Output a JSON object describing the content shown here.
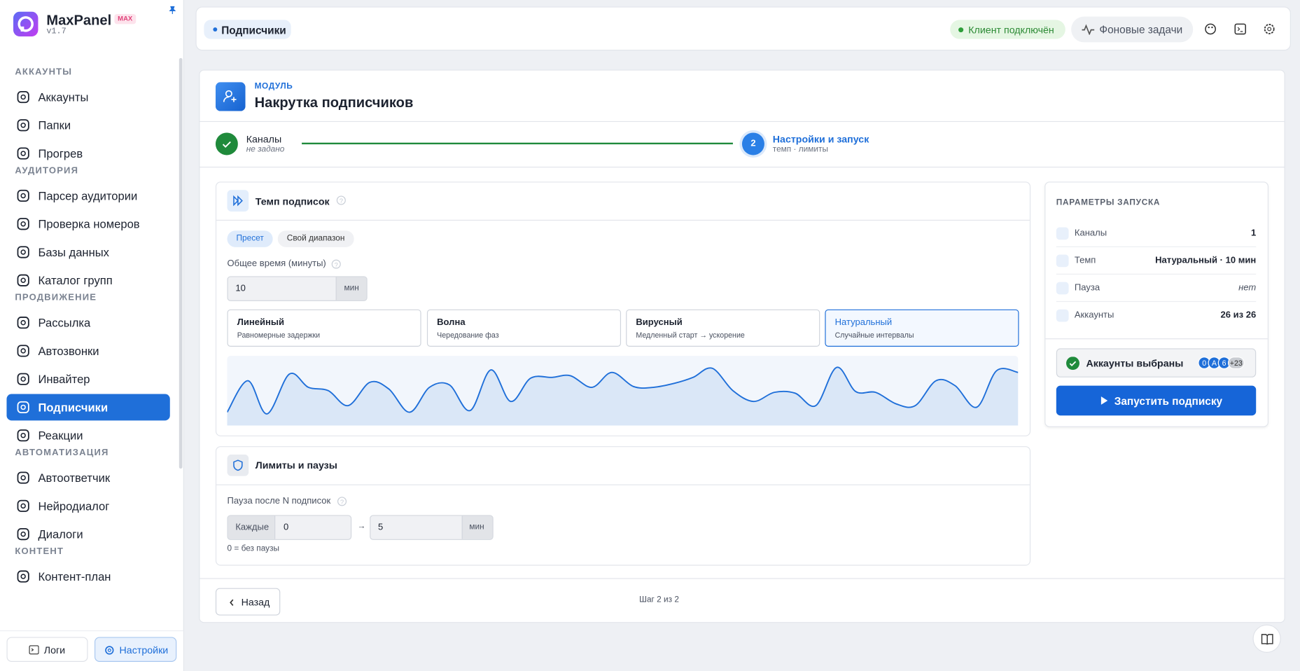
{
  "sidebar": {
    "brand": "MaxPanel",
    "badge": "MAX",
    "version": "v1.7",
    "sections": [
      {
        "title": "АККАУНТЫ",
        "items": [
          "Аккаунты",
          "Папки",
          "Прогрев"
        ]
      },
      {
        "title": "АУДИТОРИЯ",
        "items": [
          "Парсер аудитории",
          "Проверка номеров",
          "Базы данных",
          "Каталог групп"
        ]
      },
      {
        "title": "ПРОДВИЖЕНИЕ",
        "items": [
          "Рассылка",
          "Автозвонки",
          "Инвайтер",
          "Подписчики",
          "Реакции"
        ]
      },
      {
        "title": "АВТОМАТИЗАЦИЯ",
        "items": [
          "Автоответчик",
          "Нейродиалог",
          "Диалоги"
        ]
      },
      {
        "title": "КОНТЕНТ",
        "items": [
          "Контент-план"
        ]
      }
    ],
    "footer": [
      "Логи",
      "Настройки"
    ]
  },
  "topbar": {
    "breadcrumb": "Подписчики",
    "status": "Клиент подключён",
    "tasks": "Фоновые задачи"
  },
  "module": {
    "label": "МОДУЛЬ",
    "title": "Накрутка подписчиков"
  },
  "steps": [
    {
      "title": "Каналы",
      "subtitle": "не задано"
    },
    {
      "number": "2",
      "title": "Настройки и запуск",
      "subtitle": "темп · лимиты"
    }
  ],
  "tempo": {
    "title": "Темп подписок",
    "tabs": [
      "Пресет",
      "Свой диапазон"
    ],
    "field_label": "Общее время (минуты)",
    "value": "10",
    "unit": "мин",
    "presets": [
      {
        "name": "Линейный",
        "desc": "Равномерные задержки"
      },
      {
        "name": "Волна",
        "desc": "Чередование фаз"
      },
      {
        "name": "Вирусный",
        "desc": "Медленный старт → ускорение"
      },
      {
        "name": "Натуральный",
        "desc": "Случайные интервалы"
      }
    ]
  },
  "limits": {
    "title": "Лимиты и паузы",
    "field_label": "Пауза после N подписок",
    "prefix": "Каждые",
    "from": "0",
    "arrow": "→",
    "to": "5",
    "unit": "мин",
    "hint": "0 = без паузы"
  },
  "footer": {
    "back": "Назад",
    "step": "Шаг 2 из 2"
  },
  "params": {
    "title": "ПАРАМЕТРЫ ЗАПУСКА",
    "rows": [
      {
        "label": "Каналы",
        "value": "1"
      },
      {
        "label": "Темп",
        "value": "Натуральный · 10 мин"
      },
      {
        "label": "Пауза",
        "value": "нет"
      },
      {
        "label": "Аккаунты",
        "value": "26 из 26"
      }
    ],
    "selected": "Аккаунты выбраны",
    "avatars": [
      "0",
      "A",
      "6",
      "+23"
    ],
    "start": "Запустить подписку"
  }
}
